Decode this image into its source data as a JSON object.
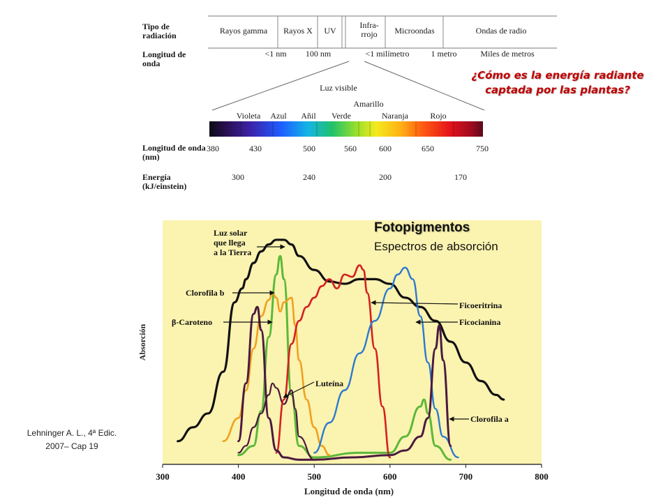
{
  "spectrum": {
    "radiation_type_label": "Tipo de radiación",
    "radiation_types": [
      "Rayos gamma",
      "Rayos X",
      "UV",
      "Infra-rrojo",
      "Microondas",
      "Ondas de radio"
    ],
    "wavelength_label": "Longitud de onda",
    "wavelength_values": [
      "<1 nm",
      "100 nm",
      "<1 milímetro",
      "1 metro",
      "Miles de metros"
    ],
    "visible_label": "Luz visible",
    "colors_top": "Amarillo",
    "colors": [
      "Violeta",
      "Azul",
      "Añil",
      "Verde",
      "Naranja",
      "Rojo"
    ],
    "visible_wavelength_label": "Longitud de onda (nm)",
    "visible_wavelengths": [
      "380",
      "430",
      "500",
      "560",
      "600",
      "650",
      "750"
    ],
    "energy_label": "Energía (kJ/einstein)",
    "energies": [
      "300",
      "240",
      "200",
      "170"
    ]
  },
  "question": "¿Cómo es la energía radiante captada por las plantas?",
  "chart": {
    "title": "Fotopigmentos",
    "subtitle": "Espectros de absorción"
  },
  "citation": {
    "line1": "Lehninger A. L., 4ª Edic.",
    "line2": "2007– Cap 19"
  },
  "colors": {
    "plot_background": "#fbf3b0",
    "chlorophyll_b": "#5cb83a",
    "beta_carotene": "#f0a020",
    "phycoerythrin": "#d42020",
    "phycocyanin": "#2b7ad0",
    "chlorophyll_a": "#4a1a40",
    "sunlight": "#111111",
    "question": "#c00000"
  },
  "chart_data": {
    "type": "line",
    "xlabel": "Longitud de onda (nm)",
    "ylabel": "Absorción",
    "xlim": [
      300,
      800
    ],
    "xticks": [
      300,
      400,
      500,
      600,
      700,
      800
    ],
    "series": [
      {
        "name": "Luz solar que llega a la Tierra",
        "x": [
          320,
          340,
          360,
          380,
          395,
          405,
          410,
          420,
          430,
          440,
          450,
          460,
          470,
          480,
          500,
          520,
          540,
          560,
          580,
          600,
          620,
          640,
          660,
          680,
          700,
          720,
          740,
          750
        ],
        "y": [
          0.1,
          0.16,
          0.22,
          0.4,
          0.7,
          0.76,
          0.8,
          0.87,
          0.92,
          0.95,
          0.97,
          0.97,
          0.95,
          0.9,
          0.84,
          0.79,
          0.78,
          0.8,
          0.8,
          0.78,
          0.72,
          0.68,
          0.62,
          0.53,
          0.44,
          0.36,
          0.3,
          0.28
        ]
      },
      {
        "name": "Clorofila b",
        "x": [
          400,
          420,
          430,
          440,
          450,
          455,
          460,
          470,
          480,
          500,
          560,
          600,
          620,
          640,
          645,
          650,
          660,
          680
        ],
        "y": [
          0.04,
          0.08,
          0.23,
          0.55,
          0.82,
          0.9,
          0.8,
          0.3,
          0.08,
          0.03,
          0.05,
          0.05,
          0.12,
          0.25,
          0.28,
          0.22,
          0.08,
          0.02
        ]
      },
      {
        "name": "β-Caroteno",
        "x": [
          380,
          400,
          410,
          420,
          430,
          440,
          445,
          450,
          455,
          460,
          470,
          475,
          480,
          490,
          500,
          510,
          520
        ],
        "y": [
          0.1,
          0.2,
          0.32,
          0.5,
          0.64,
          0.71,
          0.74,
          0.72,
          0.66,
          0.7,
          0.72,
          0.6,
          0.45,
          0.28,
          0.16,
          0.08,
          0.04
        ]
      },
      {
        "name": "Luteína",
        "x": [
          400,
          410,
          420,
          430,
          440,
          445,
          450,
          460,
          470,
          475,
          480,
          500
        ],
        "y": [
          0.05,
          0.08,
          0.16,
          0.22,
          0.3,
          0.35,
          0.33,
          0.26,
          0.32,
          0.24,
          0.12,
          0.02
        ]
      },
      {
        "name": "Ficoeritrina",
        "x": [
          450,
          460,
          470,
          480,
          490,
          500,
          510,
          520,
          530,
          540,
          550,
          560,
          565,
          570,
          580,
          590,
          600
        ],
        "y": [
          0.05,
          0.28,
          0.52,
          0.62,
          0.68,
          0.72,
          0.77,
          0.8,
          0.76,
          0.82,
          0.81,
          0.86,
          0.84,
          0.74,
          0.5,
          0.25,
          0.03
        ]
      },
      {
        "name": "Ficocianina",
        "x": [
          500,
          520,
          540,
          560,
          580,
          600,
          610,
          620,
          630,
          640,
          650,
          660,
          670,
          690
        ],
        "y": [
          0.05,
          0.18,
          0.32,
          0.48,
          0.62,
          0.76,
          0.82,
          0.85,
          0.8,
          0.64,
          0.44,
          0.24,
          0.12,
          0.03
        ]
      },
      {
        "name": "Clorofila a",
        "x": [
          400,
          410,
          420,
          425,
          430,
          440,
          450,
          460,
          480,
          500,
          550,
          600,
          620,
          640,
          650,
          660,
          665,
          670,
          680
        ],
        "y": [
          0.1,
          0.35,
          0.65,
          0.68,
          0.58,
          0.2,
          0.06,
          0.03,
          0.02,
          0.02,
          0.03,
          0.04,
          0.06,
          0.12,
          0.2,
          0.5,
          0.6,
          0.45,
          0.08
        ]
      }
    ],
    "annotations": [
      "Luz solar que llega a la Tierra",
      "Clorofila b",
      "β-Caroteno",
      "Luteína",
      "Ficoeritrina",
      "Ficocianina",
      "Clorofila a"
    ]
  }
}
